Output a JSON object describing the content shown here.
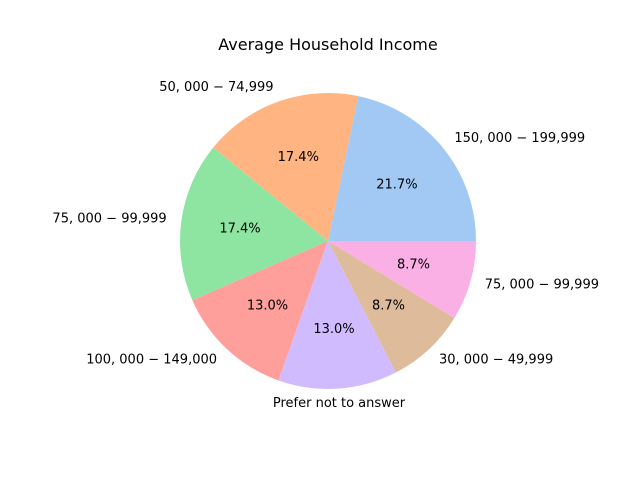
{
  "chart_data": {
    "type": "pie",
    "title": "Average Household Income",
    "start_angle_deg": 0,
    "direction": "counterclockwise",
    "slices": [
      {
        "label": "$150,000-$199,999",
        "display_label": "150, 000 − 199,999",
        "value": 21.7,
        "pct_label": "21.7%",
        "color": "#a1c9f4"
      },
      {
        "label": "$50,000-$74,999",
        "display_label": "50, 000 − 74,999",
        "value": 17.4,
        "pct_label": "17.4%",
        "color": "#ffb482"
      },
      {
        "label": "$75,000-$99,999",
        "display_label": "75, 000 − 99,999",
        "value": 17.4,
        "pct_label": "17.4%",
        "color": "#8de5a1"
      },
      {
        "label": "$100,000-$149,000",
        "display_label": "100, 000 − 149,000",
        "value": 13.0,
        "pct_label": "13.0%",
        "color": "#ff9f9b"
      },
      {
        "label": "Prefer not to answer",
        "display_label": "Prefer not to answer",
        "value": 13.0,
        "pct_label": "13.0%",
        "color": "#d0bbff"
      },
      {
        "label": "$30,000-$49,999",
        "display_label": "30, 000 − 49,999",
        "value": 8.7,
        "pct_label": "8.7%",
        "color": "#debb9b"
      },
      {
        "label": "$75,000-$99,999",
        "display_label": "75, 000 − 99,999",
        "value": 8.7,
        "pct_label": "8.7%",
        "color": "#fab0e4"
      }
    ]
  }
}
